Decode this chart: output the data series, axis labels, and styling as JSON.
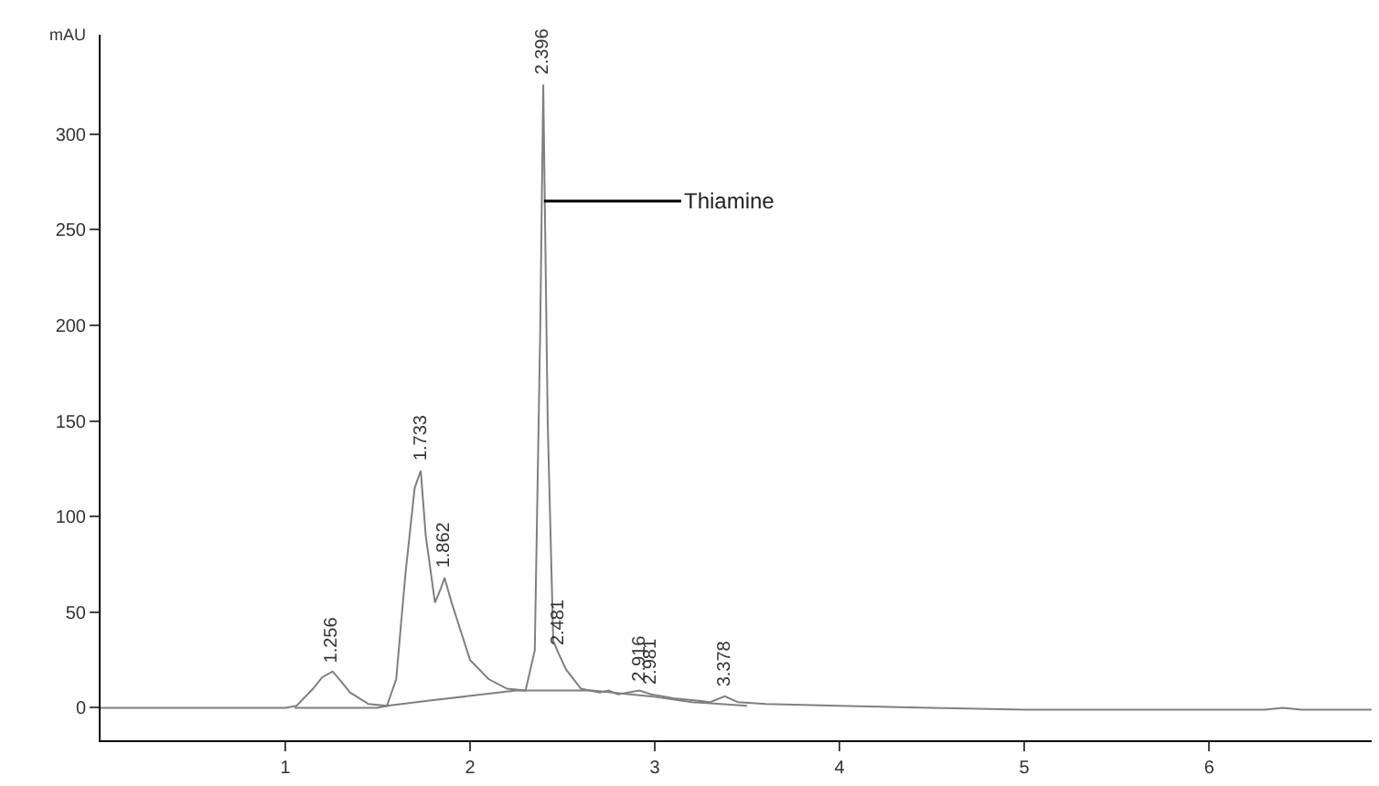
{
  "chart_data": {
    "type": "line",
    "ylabel": "mAU",
    "xlim": [
      0,
      6.88
    ],
    "xticks": [
      1,
      2,
      3,
      4,
      5,
      6
    ],
    "ylim": [
      -17,
      352
    ],
    "yticks": [
      0,
      50,
      100,
      150,
      200,
      250,
      300
    ],
    "marker": "none",
    "line_style": "solid",
    "series": [
      {
        "color": "#7f7f7f",
        "x": [
          0,
          0.5,
          1.0,
          1.06,
          1.15,
          1.2,
          1.256,
          1.3,
          1.35,
          1.45,
          1.55,
          1.6,
          1.65,
          1.7,
          1.733,
          1.76,
          1.81,
          1.84,
          1.862,
          1.9,
          1.95,
          2.0,
          2.1,
          2.2,
          2.3,
          2.35,
          2.38,
          2.396,
          2.42,
          2.45,
          2.481,
          2.52,
          2.6,
          2.7,
          2.75,
          2.8,
          2.916,
          2.981,
          3.1,
          3.2,
          3.3,
          3.378,
          3.45,
          3.6,
          4.0,
          4.5,
          5.0,
          5.5,
          6.0,
          6.3,
          6.4,
          6.5,
          6.88
        ],
        "values": [
          0,
          0,
          0,
          1,
          10,
          16,
          19,
          14,
          8,
          2,
          1,
          15,
          70,
          115,
          124,
          90,
          55,
          62,
          68,
          55,
          40,
          25,
          15,
          10,
          9,
          30,
          200,
          326,
          150,
          35,
          28,
          20,
          10,
          8,
          9,
          7,
          9,
          7,
          5,
          4,
          3,
          6,
          3,
          2,
          1,
          0,
          -1,
          -1,
          -1,
          -1,
          0,
          -1,
          -1
        ]
      },
      {
        "color": "#7f7f7f",
        "x": [
          1.05,
          1.5,
          1.55,
          1.8,
          2.25,
          2.66,
          2.98,
          3.2,
          3.5
        ],
        "values": [
          0,
          0,
          1,
          4,
          9,
          9,
          6,
          3,
          1
        ]
      }
    ],
    "annotations": [
      {
        "text": "1.256",
        "x": 1.256,
        "y": 19
      },
      {
        "text": "1.733",
        "x": 1.733,
        "y": 124
      },
      {
        "text": "1.862",
        "x": 1.862,
        "y": 68
      },
      {
        "text": "2.396",
        "x": 2.396,
        "y": 326
      },
      {
        "text": "2.481",
        "x": 2.481,
        "y": 28
      },
      {
        "text": "2.916",
        "x": 2.916,
        "y": 9
      },
      {
        "text": "2.981",
        "x": 2.981,
        "y": 7
      },
      {
        "text": "3.378",
        "x": 3.378,
        "y": 6
      },
      {
        "text": "Thiamine",
        "x": 2.4,
        "y": 265
      }
    ]
  }
}
